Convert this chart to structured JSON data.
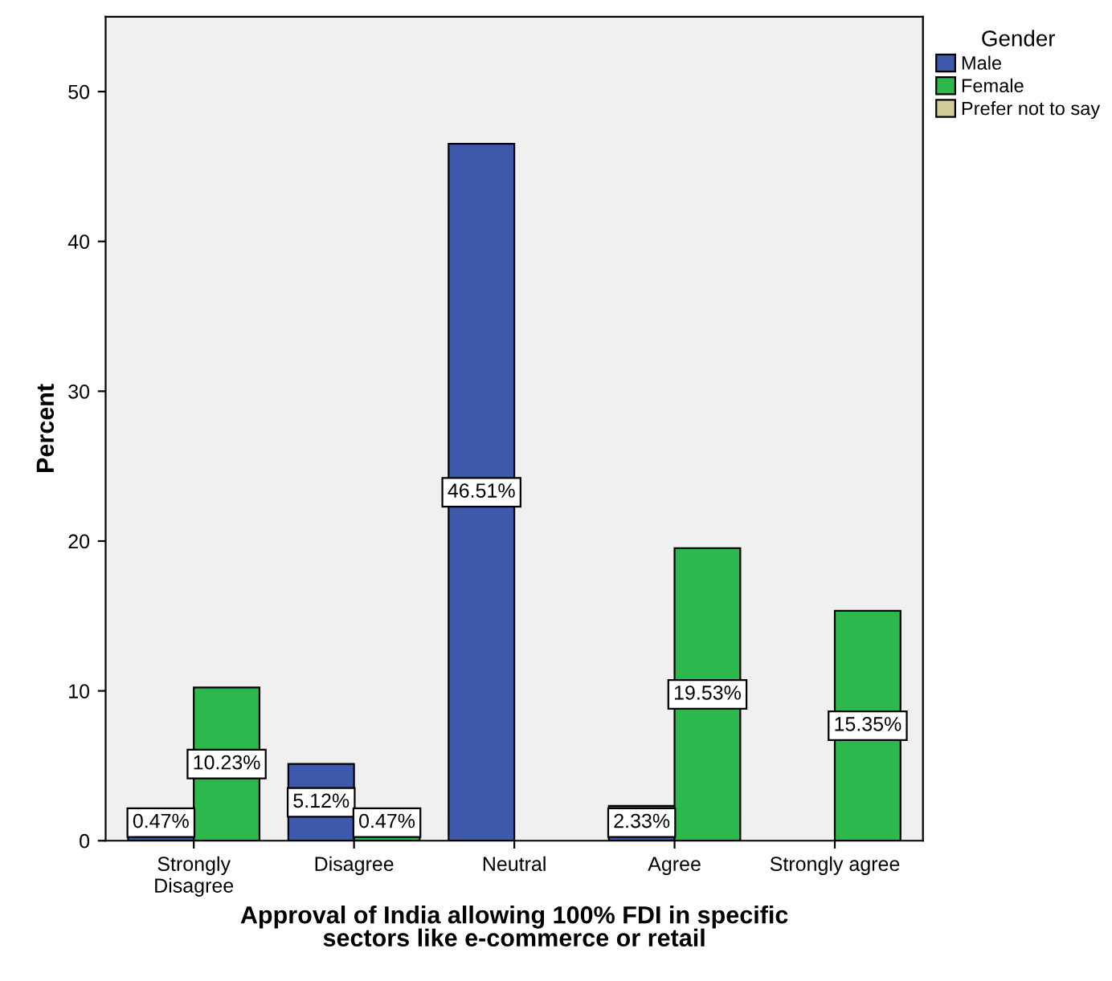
{
  "chart_data": {
    "type": "bar",
    "xlabel": "Approval of India allowing 100% FDI in specific\nsectors like e-commerce or retail",
    "ylabel": "Percent",
    "legend_title": "Gender",
    "categories": [
      "Strongly\nDisagree",
      "Disagree",
      "Neutral",
      "Agree",
      "Strongly agree"
    ],
    "series": [
      {
        "name": "Male",
        "color": "#3e58ac",
        "values": [
          0.47,
          5.12,
          46.51,
          2.33,
          null
        ],
        "value_labels": [
          "0.47%",
          "5.12%",
          "46.51%",
          "2.33%",
          null
        ]
      },
      {
        "name": "Female",
        "color": "#2db84d",
        "values": [
          10.23,
          0.47,
          null,
          19.53,
          15.35
        ],
        "value_labels": [
          "10.23%",
          "0.47%",
          null,
          "19.53%",
          "15.35%"
        ]
      },
      {
        "name": "Prefer not to say",
        "color": "#d3ce97",
        "values": [
          null,
          null,
          null,
          null,
          null
        ]
      }
    ],
    "ylim": [
      0,
      55
    ],
    "yticks": [
      0,
      10,
      20,
      30,
      40,
      50
    ],
    "grid": false,
    "legend": "top right"
  }
}
